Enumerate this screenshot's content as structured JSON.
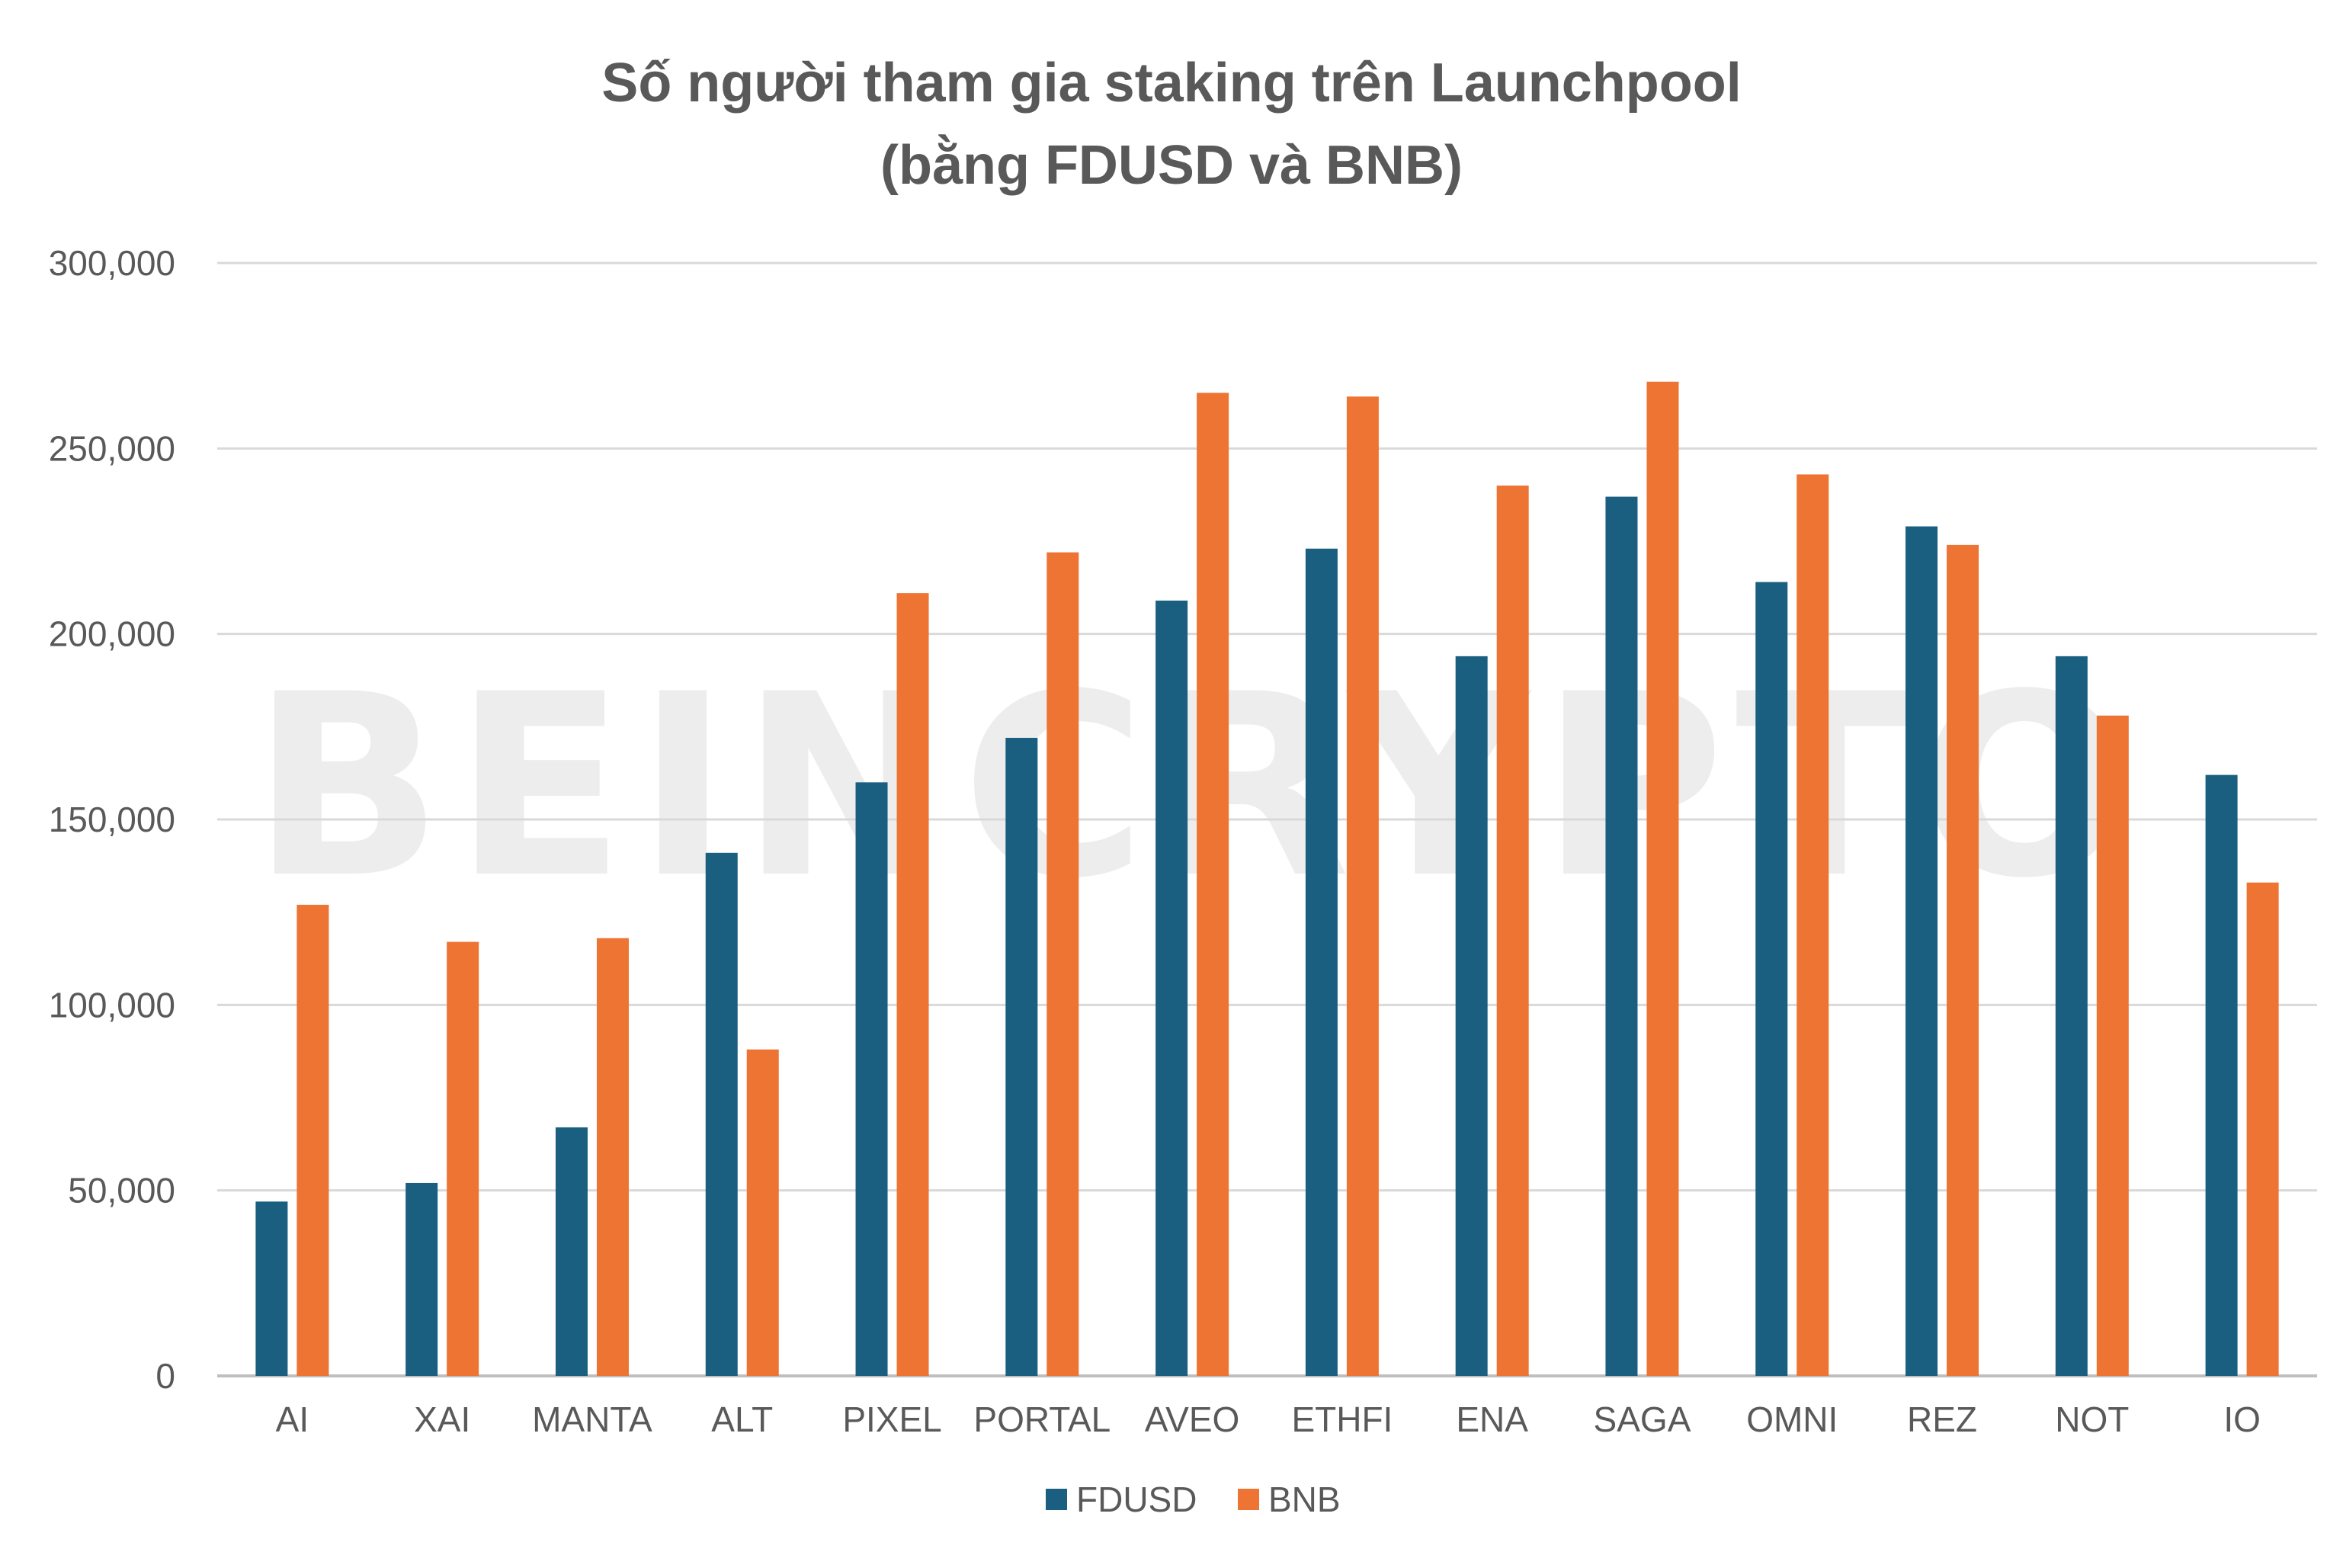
{
  "chart_data": {
    "type": "bar",
    "title": "Số người tham gia staking trên Launchpool",
    "subtitle": "(bằng FDUSD và BNB)",
    "watermark": "BEINCRYPTO",
    "categories": [
      "AI",
      "XAI",
      "MANTA",
      "ALT",
      "PIXEL",
      "PORTAL",
      "AVEO",
      "ETHFI",
      "ENA",
      "SAGA",
      "OMNI",
      "REZ",
      "NOT",
      "IO"
    ],
    "series": [
      {
        "name": "FDUSD",
        "color": "#1a5e80",
        "values": [
          47000,
          52000,
          67000,
          141000,
          160000,
          172000,
          209000,
          223000,
          194000,
          237000,
          214000,
          229000,
          194000,
          162000
        ]
      },
      {
        "name": "BNB",
        "color": "#ee7433",
        "values": [
          127000,
          117000,
          118000,
          88000,
          211000,
          222000,
          265000,
          264000,
          240000,
          268000,
          243000,
          224000,
          178000,
          133000
        ]
      }
    ],
    "ylim": [
      0,
      300000
    ],
    "yticks": [
      "0",
      "50,000",
      "100,000",
      "150,000",
      "200,000",
      "250,000",
      "300,000"
    ],
    "xlabel": "",
    "ylabel": "",
    "grid": true,
    "legend_position": "bottom"
  }
}
